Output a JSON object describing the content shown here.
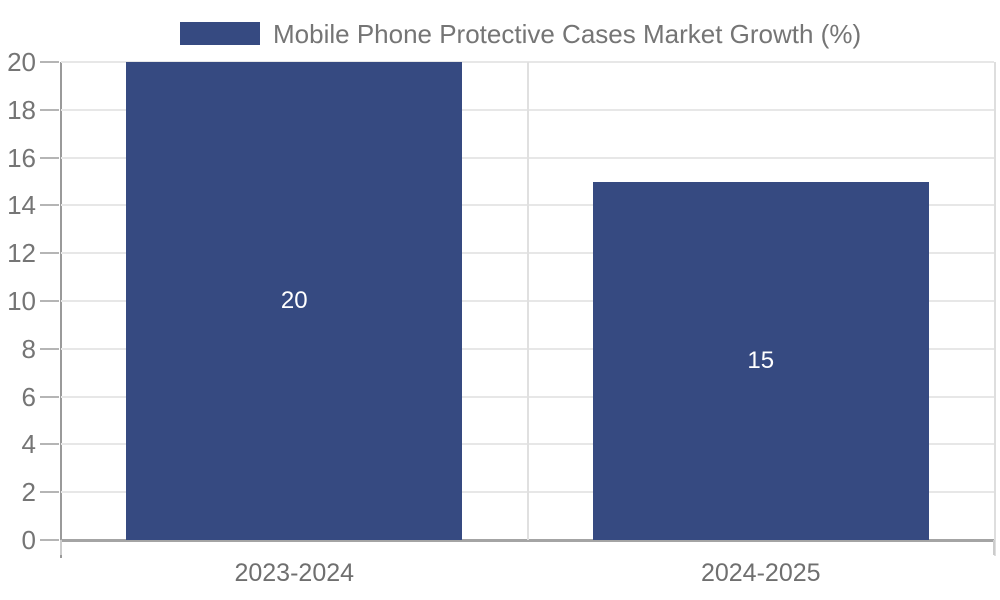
{
  "legend": {
    "label": "Mobile Phone Protective Cases Market Growth (%)"
  },
  "chart_data": {
    "type": "bar",
    "title": "Mobile Phone Protective Cases Market Growth (%)",
    "categories": [
      "2023-2024",
      "2024-2025"
    ],
    "values": [
      20,
      15
    ],
    "data_labels": [
      "20",
      "15"
    ],
    "xlabel": "",
    "ylabel": "",
    "ylim": [
      0,
      20
    ],
    "yticks": [
      0,
      2,
      4,
      6,
      8,
      10,
      12,
      14,
      16,
      18,
      20
    ],
    "grid": true,
    "legend_position": "top",
    "colors": {
      "bar": "#364a81",
      "data_label": "#ffffff",
      "gridline": "#e7e7e7",
      "axis_line": "#a4a4a4",
      "tick_text": "#757575",
      "legend_text": "#757575"
    }
  }
}
